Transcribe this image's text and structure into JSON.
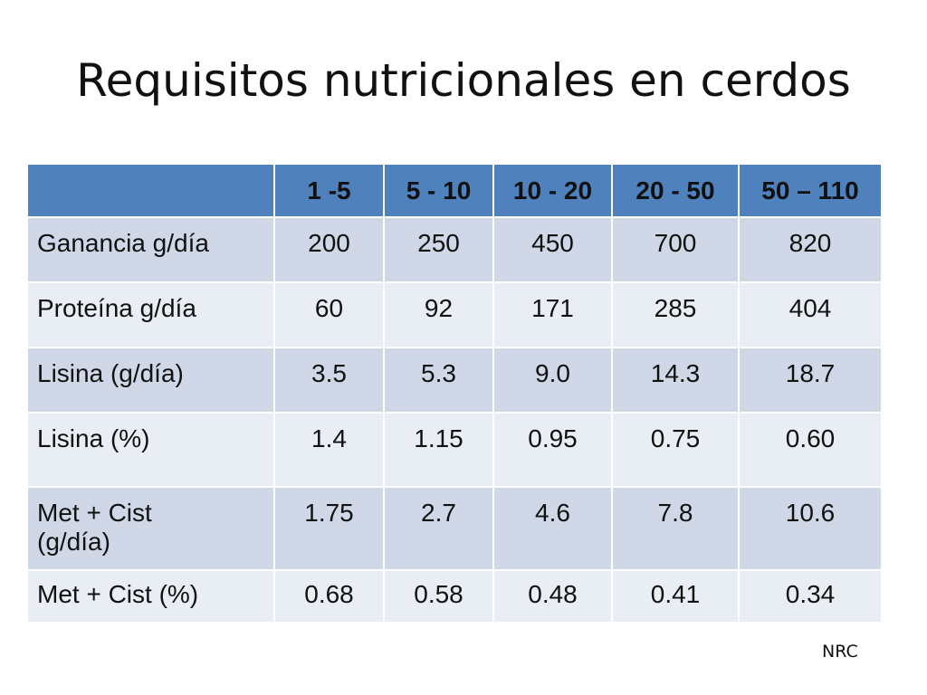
{
  "title": "Requisitos nutricionales en cerdos",
  "table": {
    "header": [
      "",
      "1 -5",
      "5 - 10",
      "10 - 20",
      "20 - 50",
      "50 – 110"
    ],
    "rows": [
      {
        "label": "Ganancia g/día",
        "values": [
          "200",
          "250",
          "450",
          "700",
          "820"
        ]
      },
      {
        "label": "Proteína g/día",
        "values": [
          "60",
          "92",
          "171",
          "285",
          "404"
        ]
      },
      {
        "label": "Lisina (g/día)",
        "values": [
          "3.5",
          "5.3",
          "9.0",
          "14.3",
          "18.7"
        ]
      },
      {
        "label": "Lisina (%)",
        "values": [
          "1.4",
          "1.15",
          "0.95",
          "0.75",
          "0.60"
        ]
      },
      {
        "label": "Met + Cist (g/día)",
        "values": [
          "1.75",
          "2.7",
          "4.6",
          "7.8",
          "10.6"
        ]
      },
      {
        "label": "Met + Cist (%)",
        "values": [
          "0.68",
          "0.58",
          "0.48",
          "0.41",
          "0.34"
        ]
      }
    ]
  },
  "source": "NRC",
  "colors": {
    "header": "#4f81bd",
    "row_odd": "#d0d8e8",
    "row_even": "#e9edf4"
  }
}
